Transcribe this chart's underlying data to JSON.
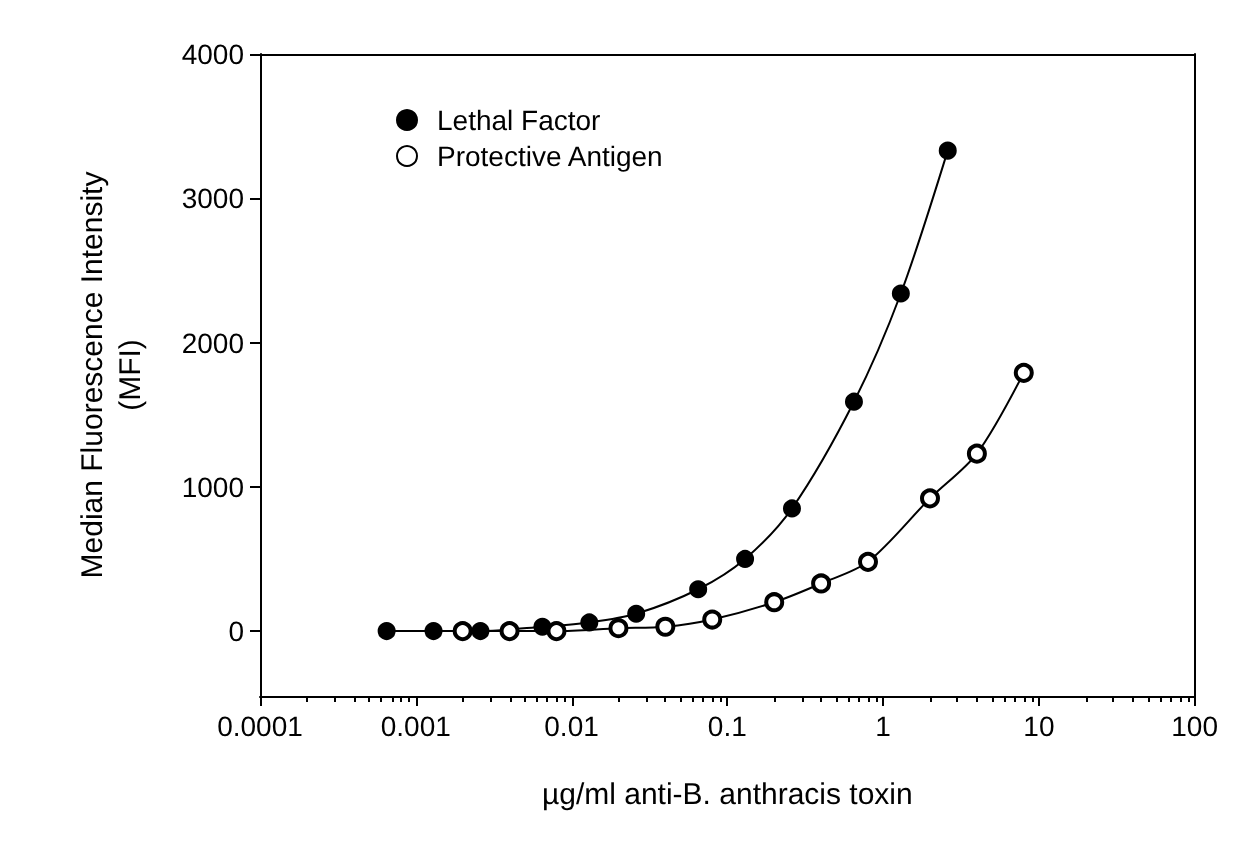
{
  "chart_data": {
    "type": "line",
    "xlabel": "µg/ml anti-B. anthracis toxin",
    "ylabel": "Median Fluorescence Intensity\n(MFI)",
    "log": "x",
    "xlim": [
      0.0001,
      100
    ],
    "xticks": [
      0.0001,
      0.001,
      0.01,
      0.1,
      1,
      10,
      100
    ],
    "ylim": [
      -450,
      4000
    ],
    "yticks": [
      0,
      1000,
      2000,
      3000,
      4000
    ],
    "grid": false,
    "legend": "top left",
    "marker": "circle",
    "series": [
      {
        "name": "Lethal Factor",
        "color": "#000000",
        "x": [
          0.00065,
          0.0013,
          0.0026,
          0.0065,
          0.013,
          0.026,
          0.065,
          0.13,
          0.26,
          0.65,
          1.3,
          2.6
        ],
        "values": [
          0,
          0,
          0,
          30,
          60,
          120,
          290,
          500,
          850,
          1590,
          2340,
          3330
        ]
      },
      {
        "name": "Protective Antigen",
        "color": "#000000",
        "marker": "open circle",
        "x": [
          0.002,
          0.004,
          0.008,
          0.02,
          0.04,
          0.08,
          0.2,
          0.4,
          0.8,
          2,
          4,
          8
        ],
        "values": [
          0,
          0,
          0,
          20,
          30,
          80,
          200,
          330,
          480,
          920,
          1230,
          1790
        ]
      }
    ]
  }
}
